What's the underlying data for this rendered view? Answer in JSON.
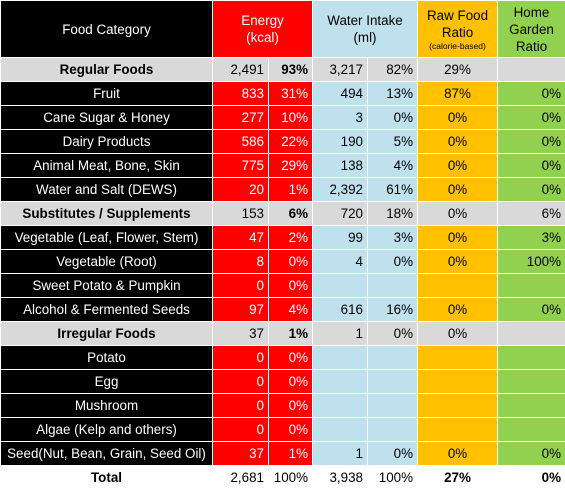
{
  "header": {
    "food_category": "Food Category",
    "energy_l1": "Energy",
    "energy_l2": "(kcal)",
    "water_l1": "Water Intake",
    "water_l2": "(ml)",
    "raw_l1": "Raw Food",
    "raw_l2": "Ratio",
    "raw_l3": "(calorie-based)",
    "home_l1": "Home",
    "home_l2": "Garden",
    "home_l3": "Ratio"
  },
  "rows": [
    {
      "type": "group",
      "category": "Regular Foods",
      "energy": "2,491",
      "energy_pct": "93%",
      "water": "3,217",
      "water_pct": "82%",
      "raw": "29%",
      "home": ""
    },
    {
      "type": "item",
      "category": "Fruit",
      "energy": "833",
      "energy_pct": "31%",
      "water": "494",
      "water_pct": "13%",
      "raw": "87%",
      "home": "0%"
    },
    {
      "type": "item",
      "category": "Cane Sugar & Honey",
      "energy": "277",
      "energy_pct": "10%",
      "water": "3",
      "water_pct": "0%",
      "raw": "0%",
      "home": "0%"
    },
    {
      "type": "item",
      "category": "Dairy Products",
      "energy": "586",
      "energy_pct": "22%",
      "water": "190",
      "water_pct": "5%",
      "raw": "0%",
      "home": "0%"
    },
    {
      "type": "item",
      "category": "Animal Meat, Bone, Skin",
      "energy": "775",
      "energy_pct": "29%",
      "water": "138",
      "water_pct": "4%",
      "raw": "0%",
      "home": "0%"
    },
    {
      "type": "item",
      "category": "Water and Salt (DEWS)",
      "energy": "20",
      "energy_pct": "1%",
      "water": "2,392",
      "water_pct": "61%",
      "raw": "0%",
      "home": "0%"
    },
    {
      "type": "group",
      "category": "Substitutes / Supplements",
      "energy": "153",
      "energy_pct": "6%",
      "water": "720",
      "water_pct": "18%",
      "raw": "0%",
      "home": "6%"
    },
    {
      "type": "item",
      "category": "Vegetable (Leaf, Flower, Stem)",
      "energy": "47",
      "energy_pct": "2%",
      "water": "99",
      "water_pct": "3%",
      "raw": "0%",
      "home": "3%"
    },
    {
      "type": "item",
      "category": "Vegetable (Root)",
      "energy": "8",
      "energy_pct": "0%",
      "water": "4",
      "water_pct": "0%",
      "raw": "0%",
      "home": "100%"
    },
    {
      "type": "item",
      "category": "Sweet Potato & Pumpkin",
      "energy": "0",
      "energy_pct": "0%",
      "water": "",
      "water_pct": "",
      "raw": "",
      "home": ""
    },
    {
      "type": "item",
      "category": "Alcohol & Fermented Seeds",
      "energy": "97",
      "energy_pct": "4%",
      "water": "616",
      "water_pct": "16%",
      "raw": "0%",
      "home": "0%"
    },
    {
      "type": "group",
      "category": "Irregular Foods",
      "energy": "37",
      "energy_pct": "1%",
      "water": "1",
      "water_pct": "0%",
      "raw": "0%",
      "home": ""
    },
    {
      "type": "item",
      "category": "Potato",
      "energy": "0",
      "energy_pct": "0%",
      "water": "",
      "water_pct": "",
      "raw": "",
      "home": ""
    },
    {
      "type": "item",
      "category": "Egg",
      "energy": "0",
      "energy_pct": "0%",
      "water": "",
      "water_pct": "",
      "raw": "",
      "home": ""
    },
    {
      "type": "item",
      "category": "Mushroom",
      "energy": "0",
      "energy_pct": "0%",
      "water": "",
      "water_pct": "",
      "raw": "",
      "home": ""
    },
    {
      "type": "item",
      "category": "Algae (Kelp and others)",
      "energy": "0",
      "energy_pct": "0%",
      "water": "",
      "water_pct": "",
      "raw": "",
      "home": ""
    },
    {
      "type": "item",
      "category": "Seed(Nut, Bean, Grain, Seed Oil)",
      "energy": "37",
      "energy_pct": "1%",
      "water": "1",
      "water_pct": "0%",
      "raw": "0%",
      "home": "0%"
    },
    {
      "type": "total",
      "category": "Total",
      "energy": "2,681",
      "energy_pct": "100%",
      "water": "3,938",
      "water_pct": "100%",
      "raw": "27%",
      "home": "0%"
    }
  ],
  "colors": {
    "black": "#000000",
    "energy_red": "#ff0000",
    "water_blue": "#bfe1ee",
    "raw_orange": "#ffc000",
    "home_green": "#92d050",
    "group_grey": "#d9d9d9"
  }
}
